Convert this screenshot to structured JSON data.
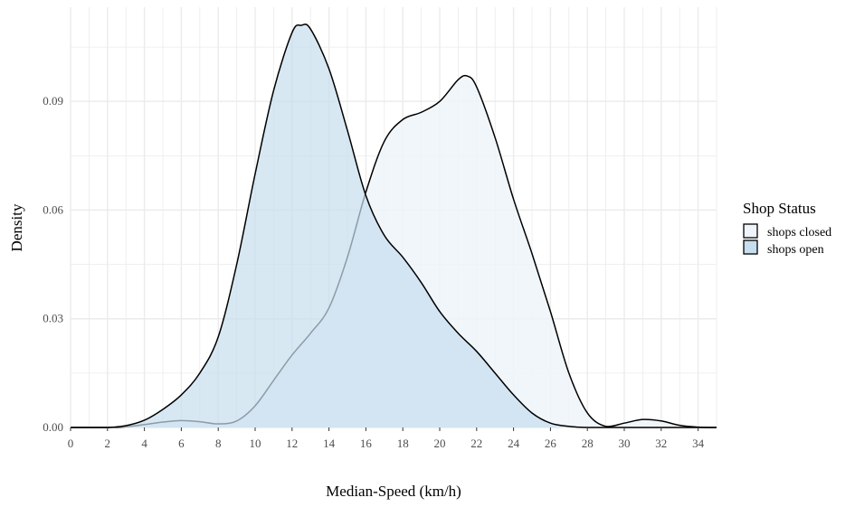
{
  "chart_data": {
    "type": "area",
    "xlabel": "Median-Speed (km/h)",
    "ylabel": "Density",
    "xlim": [
      0,
      35
    ],
    "ylim": [
      0,
      0.116
    ],
    "xticks": [
      0,
      2,
      4,
      6,
      8,
      10,
      12,
      14,
      16,
      18,
      20,
      22,
      24,
      26,
      28,
      30,
      32,
      34
    ],
    "yticks": [
      0.0,
      0.03,
      0.06,
      0.09
    ],
    "ytick_labels": [
      "0.00",
      "0.03",
      "0.06",
      "0.09"
    ],
    "grid": true,
    "legend": {
      "title": "Shop Status",
      "position": "right"
    },
    "series": [
      {
        "name": "shops closed",
        "fill": "#eef4f9",
        "fill_opacity": 0.85,
        "stroke": "#000000",
        "x": [
          0,
          2,
          3,
          4,
          5,
          6,
          7,
          8,
          9,
          10,
          11,
          12,
          13,
          14,
          15,
          16,
          17,
          18,
          19,
          20,
          21,
          21.5,
          22,
          23,
          24,
          25,
          26,
          27,
          28,
          29,
          30,
          31,
          32,
          33,
          34,
          35
        ],
        "y": [
          0,
          0,
          0.0002,
          0.0008,
          0.0015,
          0.0019,
          0.0016,
          0.001,
          0.0018,
          0.006,
          0.013,
          0.02,
          0.026,
          0.033,
          0.047,
          0.065,
          0.079,
          0.085,
          0.087,
          0.09,
          0.096,
          0.097,
          0.094,
          0.08,
          0.063,
          0.048,
          0.032,
          0.015,
          0.004,
          0.0003,
          0.0012,
          0.0022,
          0.0018,
          0.0006,
          0.0001,
          0
        ]
      },
      {
        "name": "shops open",
        "fill": "#c6deee",
        "fill_opacity": 0.7,
        "stroke": "#000000",
        "x": [
          0,
          2,
          3,
          4,
          5,
          6,
          7,
          8,
          9,
          10,
          11,
          12,
          12.5,
          13,
          14,
          15,
          16,
          17,
          18,
          19,
          20,
          21,
          22,
          23,
          24,
          25,
          26,
          27,
          28,
          29,
          30,
          31,
          32,
          33,
          34,
          35
        ],
        "y": [
          0,
          0,
          0.0005,
          0.002,
          0.005,
          0.009,
          0.015,
          0.025,
          0.045,
          0.07,
          0.093,
          0.109,
          0.111,
          0.11,
          0.099,
          0.082,
          0.064,
          0.053,
          0.047,
          0.04,
          0.032,
          0.026,
          0.021,
          0.015,
          0.009,
          0.004,
          0.0012,
          0.0003,
          0,
          0,
          0,
          0,
          0,
          0,
          0,
          0
        ]
      }
    ]
  }
}
